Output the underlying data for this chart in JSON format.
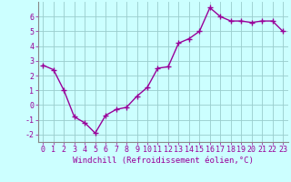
{
  "x": [
    0,
    1,
    2,
    3,
    4,
    5,
    6,
    7,
    8,
    9,
    10,
    11,
    12,
    13,
    14,
    15,
    16,
    17,
    18,
    19,
    20,
    21,
    22,
    23
  ],
  "y": [
    2.7,
    2.4,
    1.0,
    -0.8,
    -1.2,
    -1.9,
    -0.7,
    -0.3,
    -0.15,
    0.6,
    1.2,
    2.5,
    2.6,
    4.2,
    4.5,
    5.0,
    6.6,
    6.0,
    5.7,
    5.7,
    5.6,
    5.7,
    5.7,
    5.0
  ],
  "line_color": "#990099",
  "marker": "+",
  "markersize": 4,
  "linewidth": 1.0,
  "bg_color": "#ccffff",
  "grid_color": "#99cccc",
  "xlabel": "Windchill (Refroidissement éolien,°C)",
  "xlabel_fontsize": 6.5,
  "tick_fontsize": 6,
  "ylim": [
    -2.5,
    7.0
  ],
  "xlim": [
    -0.5,
    23.5
  ],
  "yticks": [
    -2,
    -1,
    0,
    1,
    2,
    3,
    4,
    5,
    6
  ],
  "xticks": [
    0,
    1,
    2,
    3,
    4,
    5,
    6,
    7,
    8,
    9,
    10,
    11,
    12,
    13,
    14,
    15,
    16,
    17,
    18,
    19,
    20,
    21,
    22,
    23
  ]
}
